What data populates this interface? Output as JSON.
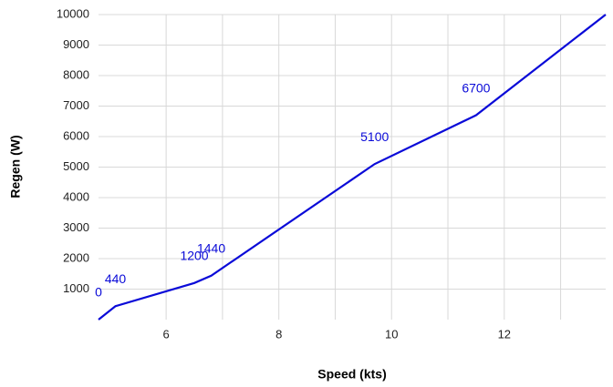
{
  "chart_data": {
    "type": "line",
    "x_label": "Speed (kts)",
    "y_label": "Regen (W)",
    "x": [
      4.8,
      5.1,
      6.5,
      6.8,
      9.7,
      11.5,
      13.8
    ],
    "series": [
      {
        "name": "Regen",
        "color": "#0a0ad8",
        "values": [
          0,
          440,
          1200,
          1440,
          5100,
          6700,
          10000
        ],
        "value_labels": [
          "0",
          "440",
          "1200",
          "1440",
          "5100",
          "6700",
          null
        ]
      }
    ],
    "xlim": [
      4.8,
      13.8
    ],
    "xticks": [
      6,
      8,
      10,
      12
    ],
    "xgrid": [
      6,
      7,
      8,
      9,
      10,
      11,
      12,
      13
    ],
    "ylim": [
      0,
      10000
    ],
    "yticks": [
      1000,
      2000,
      3000,
      4000,
      5000,
      6000,
      7000,
      8000,
      9000,
      10000
    ],
    "grid": true
  }
}
